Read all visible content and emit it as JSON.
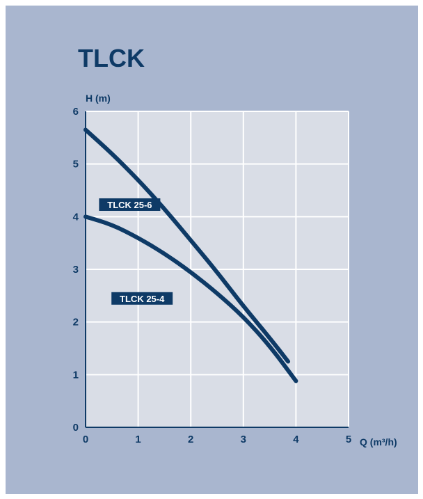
{
  "colors": {
    "panel_bg": "#a9b6cf",
    "plot_bg": "#d9dde6",
    "grid": "#ffffff",
    "axis": "#0e3a66",
    "curve": "#0e3a66",
    "label_bg": "#0e3a66",
    "label_text": "#ffffff"
  },
  "chart_data": {
    "type": "line",
    "title": "TLCK",
    "xlabel": "Q (m³/h)",
    "ylabel": "H (m)",
    "xlim": [
      0,
      5
    ],
    "ylim": [
      0,
      6
    ],
    "xticks": [
      "0",
      "1",
      "2",
      "3",
      "4",
      "5"
    ],
    "yticks": [
      "0",
      "1",
      "2",
      "3",
      "4",
      "5",
      "6"
    ],
    "grid": true,
    "series": [
      {
        "name": "TLCK 25-6",
        "x": [
          0,
          0.5,
          1,
          1.5,
          2,
          2.5,
          3,
          3.5,
          3.85
        ],
        "y": [
          5.65,
          5.2,
          4.7,
          4.15,
          3.55,
          2.95,
          2.3,
          1.7,
          1.25
        ]
      },
      {
        "name": "TLCK 25-4",
        "x": [
          0,
          0.5,
          1,
          1.5,
          2,
          2.5,
          3,
          3.5,
          4
        ],
        "y": [
          4.0,
          3.85,
          3.6,
          3.3,
          2.95,
          2.55,
          2.1,
          1.55,
          0.88
        ]
      }
    ]
  }
}
